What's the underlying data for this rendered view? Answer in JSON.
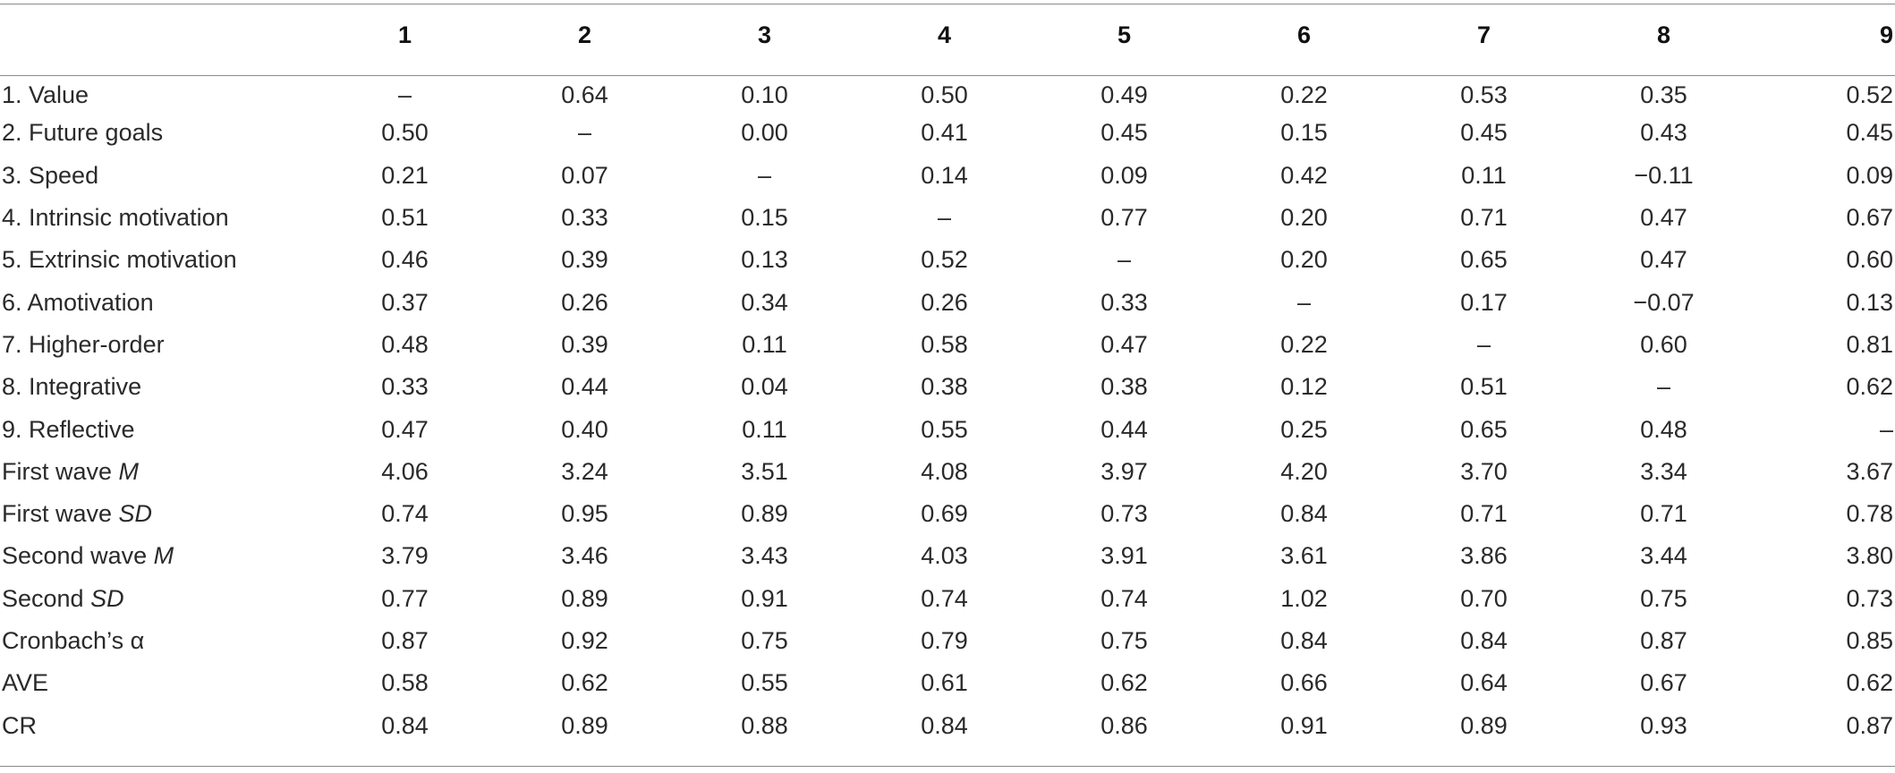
{
  "table": {
    "columns": [
      "",
      "1",
      "2",
      "3",
      "4",
      "5",
      "6",
      "7",
      "8",
      "9"
    ],
    "rows": [
      {
        "label": "1. Value",
        "suffix": "",
        "cells": [
          "–",
          "0.64",
          "0.10",
          "0.50",
          "0.49",
          "0.22",
          "0.53",
          "0.35",
          "0.52"
        ]
      },
      {
        "label": "2. Future goals",
        "suffix": "",
        "cells": [
          "0.50",
          "–",
          "0.00",
          "0.41",
          "0.45",
          "0.15",
          "0.45",
          "0.43",
          "0.45"
        ]
      },
      {
        "label": "3. Speed",
        "suffix": "",
        "cells": [
          "0.21",
          "0.07",
          "–",
          "0.14",
          "0.09",
          "0.42",
          "0.11",
          "−0.11",
          "0.09"
        ]
      },
      {
        "label": "4. Intrinsic motivation",
        "suffix": "",
        "cells": [
          "0.51",
          "0.33",
          "0.15",
          "–",
          "0.77",
          "0.20",
          "0.71",
          "0.47",
          "0.67"
        ]
      },
      {
        "label": "5. Extrinsic motivation",
        "suffix": "",
        "cells": [
          "0.46",
          "0.39",
          "0.13",
          "0.52",
          "–",
          "0.20",
          "0.65",
          "0.47",
          "0.60"
        ]
      },
      {
        "label": "6. Amotivation",
        "suffix": "",
        "cells": [
          "0.37",
          "0.26",
          "0.34",
          "0.26",
          "0.33",
          "–",
          "0.17",
          "−0.07",
          "0.13"
        ]
      },
      {
        "label": "7. Higher-order",
        "suffix": "",
        "cells": [
          "0.48",
          "0.39",
          "0.11",
          "0.58",
          "0.47",
          "0.22",
          "–",
          "0.60",
          "0.81"
        ]
      },
      {
        "label": "8. Integrative",
        "suffix": "",
        "cells": [
          "0.33",
          "0.44",
          "0.04",
          "0.38",
          "0.38",
          "0.12",
          "0.51",
          "–",
          "0.62"
        ]
      },
      {
        "label": "9. Reflective",
        "suffix": "",
        "cells": [
          "0.47",
          "0.40",
          "0.11",
          "0.55",
          "0.44",
          "0.25",
          "0.65",
          "0.48",
          "–"
        ]
      },
      {
        "label": "First wave ",
        "suffix": "M",
        "cells": [
          "4.06",
          "3.24",
          "3.51",
          "4.08",
          "3.97",
          "4.20",
          "3.70",
          "3.34",
          "3.67"
        ]
      },
      {
        "label": "First wave ",
        "suffix": "SD",
        "cells": [
          "0.74",
          "0.95",
          "0.89",
          "0.69",
          "0.73",
          "0.84",
          "0.71",
          "0.71",
          "0.78"
        ]
      },
      {
        "label": "Second wave ",
        "suffix": "M",
        "cells": [
          "3.79",
          "3.46",
          "3.43",
          "4.03",
          "3.91",
          "3.61",
          "3.86",
          "3.44",
          "3.80"
        ]
      },
      {
        "label": "Second ",
        "suffix": "SD",
        "cells": [
          "0.77",
          "0.89",
          "0.91",
          "0.74",
          "0.74",
          "1.02",
          "0.70",
          "0.75",
          "0.73"
        ]
      },
      {
        "label": "Cronbach’s α",
        "suffix": "",
        "cells": [
          "0.87",
          "0.92",
          "0.75",
          "0.79",
          "0.75",
          "0.84",
          "0.84",
          "0.87",
          "0.85"
        ]
      },
      {
        "label": "AVE",
        "suffix": "",
        "cells": [
          "0.58",
          "0.62",
          "0.55",
          "0.61",
          "0.62",
          "0.66",
          "0.64",
          "0.67",
          "0.62"
        ]
      },
      {
        "label": "CR",
        "suffix": "",
        "cells": [
          "0.84",
          "0.89",
          "0.88",
          "0.84",
          "0.86",
          "0.91",
          "0.89",
          "0.93",
          "0.87"
        ]
      }
    ]
  },
  "chart_data": {
    "type": "table",
    "columns": [
      "",
      "1",
      "2",
      "3",
      "4",
      "5",
      "6",
      "7",
      "8",
      "9"
    ],
    "rows": [
      [
        "1. Value",
        "–",
        0.64,
        0.1,
        0.5,
        0.49,
        0.22,
        0.53,
        0.35,
        0.52
      ],
      [
        "2. Future goals",
        0.5,
        "–",
        0.0,
        0.41,
        0.45,
        0.15,
        0.45,
        0.43,
        0.45
      ],
      [
        "3. Speed",
        0.21,
        0.07,
        "–",
        0.14,
        0.09,
        0.42,
        0.11,
        -0.11,
        0.09
      ],
      [
        "4. Intrinsic motivation",
        0.51,
        0.33,
        0.15,
        "–",
        0.77,
        0.2,
        0.71,
        0.47,
        0.67
      ],
      [
        "5. Extrinsic motivation",
        0.46,
        0.39,
        0.13,
        0.52,
        "–",
        0.2,
        0.65,
        0.47,
        0.6
      ],
      [
        "6. Amotivation",
        0.37,
        0.26,
        0.34,
        0.26,
        0.33,
        "–",
        0.17,
        -0.07,
        0.13
      ],
      [
        "7. Higher-order",
        0.48,
        0.39,
        0.11,
        0.58,
        0.47,
        0.22,
        "–",
        0.6,
        0.81
      ],
      [
        "8. Integrative",
        0.33,
        0.44,
        0.04,
        0.38,
        0.38,
        0.12,
        0.51,
        "–",
        0.62
      ],
      [
        "9. Reflective",
        0.47,
        0.4,
        0.11,
        0.55,
        0.44,
        0.25,
        0.65,
        0.48,
        "–"
      ],
      [
        "First wave M",
        4.06,
        3.24,
        3.51,
        4.08,
        3.97,
        4.2,
        3.7,
        3.34,
        3.67
      ],
      [
        "First wave SD",
        0.74,
        0.95,
        0.89,
        0.69,
        0.73,
        0.84,
        0.71,
        0.71,
        0.78
      ],
      [
        "Second wave M",
        3.79,
        3.46,
        3.43,
        4.03,
        3.91,
        3.61,
        3.86,
        3.44,
        3.8
      ],
      [
        "Second SD",
        0.77,
        0.89,
        0.91,
        0.74,
        0.74,
        1.02,
        0.7,
        0.75,
        0.73
      ],
      [
        "Cronbach’s α",
        0.87,
        0.92,
        0.75,
        0.79,
        0.75,
        0.84,
        0.84,
        0.87,
        0.85
      ],
      [
        "AVE",
        0.58,
        0.62,
        0.55,
        0.61,
        0.62,
        0.66,
        0.64,
        0.67,
        0.62
      ],
      [
        "CR",
        0.84,
        0.89,
        0.88,
        0.84,
        0.86,
        0.91,
        0.89,
        0.93,
        0.87
      ]
    ]
  }
}
